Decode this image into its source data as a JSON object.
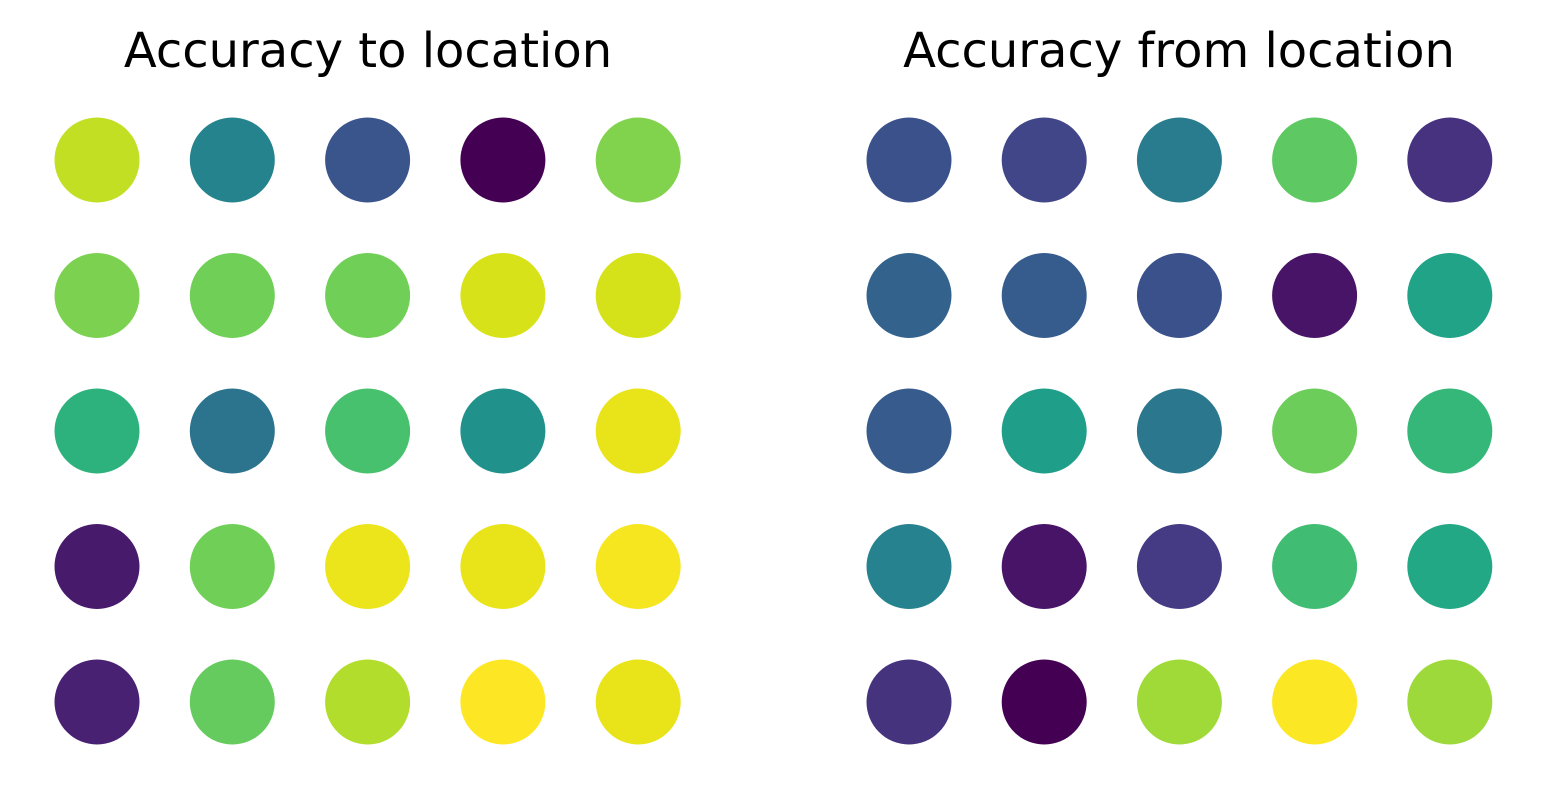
{
  "chart_data": [
    {
      "type": "heatmap",
      "title": "Accuracy to location",
      "grid": false,
      "colormap": "viridis",
      "rows": 5,
      "cols": 5,
      "values": [
        [
          0.89,
          0.47,
          0.26,
          0.0,
          0.76
        ],
        [
          0.75,
          0.72,
          0.72,
          0.93,
          0.91
        ],
        [
          0.6,
          0.43,
          0.66,
          0.53,
          0.96
        ],
        [
          0.07,
          0.72,
          0.96,
          0.95,
          0.98
        ],
        [
          0.08,
          0.7,
          0.86,
          0.99,
          0.96
        ]
      ],
      "colors": [
        [
          "#c2df23",
          "#25838e",
          "#3a548c",
          "#440154",
          "#81d34d"
        ],
        [
          "#7cd250",
          "#70cf57",
          "#70cf57",
          "#d8e219",
          "#d5e21a"
        ],
        [
          "#2db27d",
          "#2c738e",
          "#48c16e",
          "#21918c",
          "#e8e419"
        ],
        [
          "#481a6c",
          "#70cf57",
          "#ece51b",
          "#e8e419",
          "#f6e620"
        ],
        [
          "#482173",
          "#65cb5e",
          "#b2dd2d",
          "#fde725",
          "#e8e419"
        ]
      ]
    },
    {
      "type": "heatmap",
      "title": "Accuracy from location",
      "grid": false,
      "colormap": "viridis",
      "rows": 5,
      "cols": 5,
      "values": [
        [
          0.24,
          0.21,
          0.46,
          0.71,
          0.12
        ],
        [
          0.33,
          0.35,
          0.24,
          0.05,
          0.54
        ],
        [
          0.29,
          0.54,
          0.45,
          0.72,
          0.62
        ],
        [
          0.47,
          0.05,
          0.16,
          0.65,
          0.58
        ],
        [
          0.13,
          0.0,
          0.83,
          0.99,
          0.82
        ]
      ],
      "colors": [
        [
          "#3b518b",
          "#404688",
          "#297b8e",
          "#5ec962",
          "#46327e"
        ],
        [
          "#33638d",
          "#365c8d",
          "#3b518b",
          "#481467",
          "#20a386"
        ],
        [
          "#375b8d",
          "#1f9e89",
          "#2a778e",
          "#6ccd5a",
          "#35b779"
        ],
        [
          "#26828e",
          "#481467",
          "#443b84",
          "#40bd72",
          "#22a884"
        ],
        [
          "#46337e",
          "#440154",
          "#a0da39",
          "#fbe723",
          "#9dd93b"
        ]
      ]
    }
  ]
}
